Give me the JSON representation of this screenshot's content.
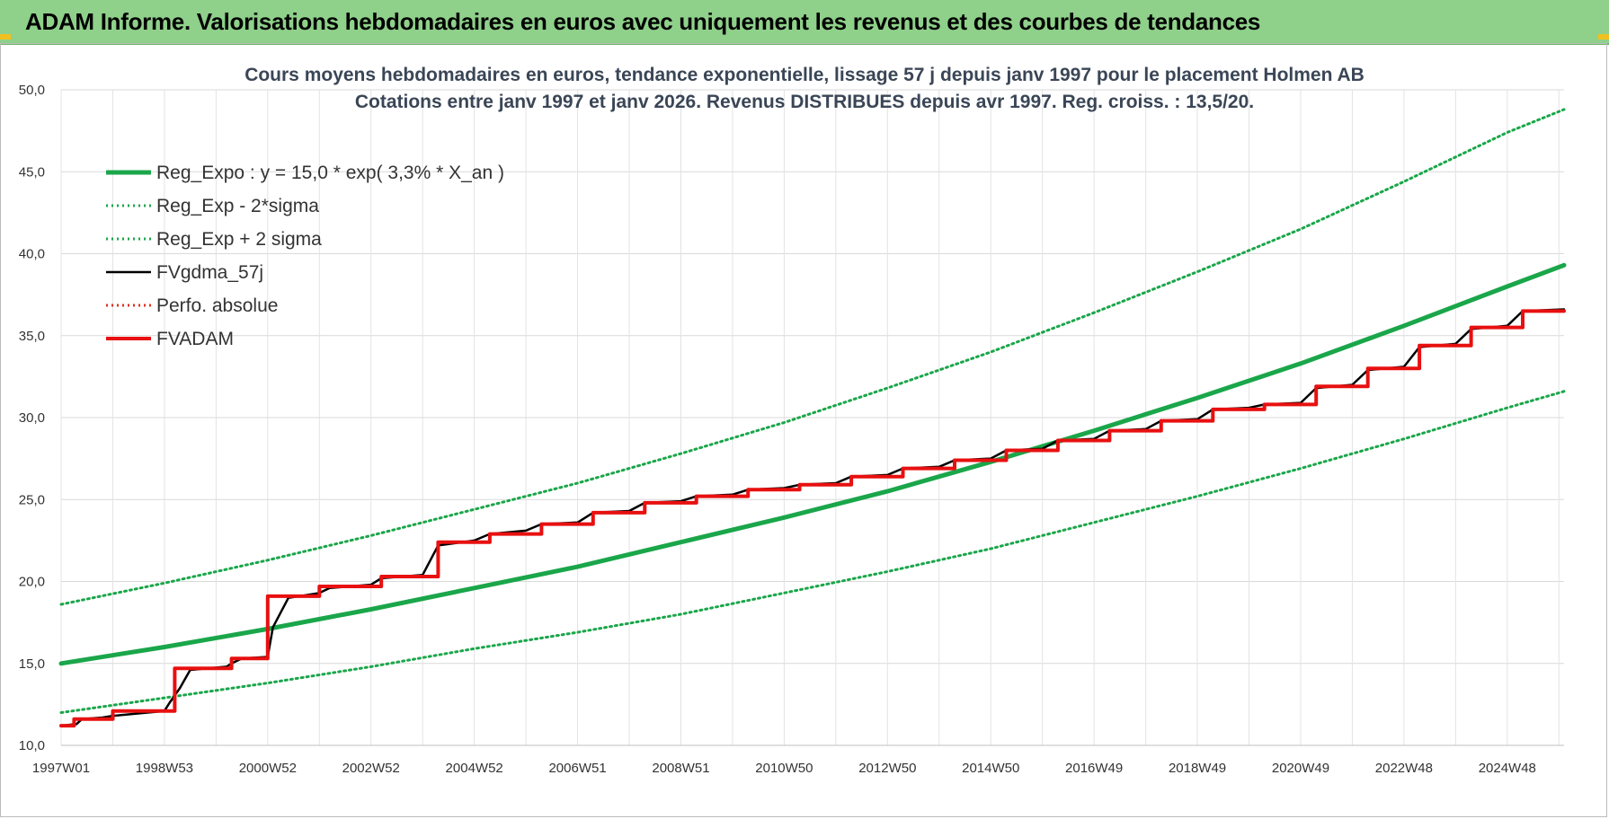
{
  "banner": {
    "title": "ADAM Informe. Valorisations hebdomadaires en euros avec uniquement les revenus et des courbes de tendances"
  },
  "colors": {
    "banner_bg": "#8fd08a",
    "trend_green": "#1aa64a",
    "fv_black": "#000000",
    "perf_red": "#e0301e",
    "fvadam_red": "#e81010"
  },
  "chart_data": {
    "type": "line",
    "title": "Cours moyens hebdomadaires en euros, tendance exponentielle, lissage 57 j depuis janv 1997  pour le placement Holmen AB",
    "subtitle": "Cotations entre janv 1997 et janv 2026. Revenus DISTRIBUES depuis avr 1997.  Reg. croiss. : 13,5/20.",
    "xlabel": "",
    "ylabel": "",
    "ylim": [
      10,
      50
    ],
    "xlim": [
      0,
      29.1
    ],
    "y_ticks": [
      "10,0",
      "15,0",
      "20,0",
      "25,0",
      "30,0",
      "35,0",
      "40,0",
      "45,0",
      "50,0"
    ],
    "x_ticks": [
      {
        "label": "1997W01",
        "x": 0
      },
      {
        "label": "1998W53",
        "x": 2
      },
      {
        "label": "2000W52",
        "x": 4
      },
      {
        "label": "2002W52",
        "x": 6
      },
      {
        "label": "2004W52",
        "x": 8
      },
      {
        "label": "2006W51",
        "x": 10
      },
      {
        "label": "2008W51",
        "x": 12
      },
      {
        "label": "2010W50",
        "x": 14
      },
      {
        "label": "2012W50",
        "x": 16
      },
      {
        "label": "2014W50",
        "x": 18
      },
      {
        "label": "2016W49",
        "x": 20
      },
      {
        "label": "2018W49",
        "x": 22
      },
      {
        "label": "2020W49",
        "x": 24
      },
      {
        "label": "2022W48",
        "x": 26
      },
      {
        "label": "2024W48",
        "x": 28
      }
    ],
    "grid": true,
    "legend_position": "top-left",
    "series": [
      {
        "name": "Reg_Expo : y = 15,0 * exp( 3,3% *  X_an )",
        "style": "solid-thick",
        "color": "#1aa64a",
        "x": [
          0,
          2,
          4,
          6,
          8,
          10,
          12,
          14,
          16,
          18,
          20,
          22,
          24,
          26,
          28,
          29.1
        ],
        "values": [
          15.0,
          16.0,
          17.1,
          18.3,
          19.6,
          20.9,
          22.4,
          23.9,
          25.5,
          27.3,
          29.2,
          31.2,
          33.3,
          35.6,
          38.0,
          39.3
        ]
      },
      {
        "name": "Reg_Exp - 2*sigma",
        "style": "dotted",
        "color": "#1aa64a",
        "x": [
          0,
          2,
          4,
          6,
          8,
          10,
          12,
          14,
          16,
          18,
          20,
          22,
          24,
          26,
          28,
          29.1
        ],
        "values": [
          12.0,
          12.9,
          13.8,
          14.8,
          15.9,
          16.9,
          18.0,
          19.3,
          20.6,
          22.0,
          23.6,
          25.2,
          26.9,
          28.7,
          30.6,
          31.6
        ]
      },
      {
        "name": "Reg_Exp + 2 sigma",
        "style": "dotted",
        "color": "#1aa64a",
        "x": [
          0,
          2,
          4,
          6,
          8,
          10,
          12,
          14,
          16,
          18,
          20,
          22,
          24,
          26,
          28,
          29.1
        ],
        "values": [
          18.6,
          19.9,
          21.3,
          22.8,
          24.4,
          26.0,
          27.8,
          29.7,
          31.8,
          34.0,
          36.4,
          38.9,
          41.5,
          44.4,
          47.4,
          48.8
        ]
      },
      {
        "name": "FVgdma_57j",
        "style": "solid",
        "color": "#000000",
        "x": [
          0,
          0.3,
          0.4,
          0.8,
          1.0,
          2.0,
          2.1,
          2.3,
          2.5,
          3.2,
          3.3,
          3.5,
          4.0,
          4.1,
          4.4,
          5.0,
          5.2,
          6.0,
          6.2,
          7.0,
          7.3,
          8.0,
          8.3,
          9.0,
          9.3,
          10.0,
          10.3,
          11.0,
          11.3,
          12.0,
          12.3,
          13.0,
          13.3,
          14.0,
          14.3,
          15.0,
          15.3,
          16.0,
          16.3,
          17.0,
          17.3,
          18.0,
          18.3,
          19.0,
          19.3,
          20.0,
          20.3,
          21.0,
          21.3,
          22.0,
          22.3,
          23.0,
          23.3,
          24.0,
          24.3,
          25.0,
          25.3,
          26.0,
          26.3,
          27.0,
          27.3,
          28.0,
          28.3,
          29.1
        ],
        "values": [
          11.2,
          11.3,
          11.6,
          11.7,
          11.8,
          12.1,
          12.6,
          13.5,
          14.6,
          14.8,
          15.0,
          15.3,
          15.4,
          17.2,
          19.0,
          19.3,
          19.6,
          19.8,
          20.2,
          20.4,
          22.2,
          22.5,
          22.9,
          23.1,
          23.5,
          23.6,
          24.2,
          24.3,
          24.8,
          24.9,
          25.2,
          25.3,
          25.6,
          25.7,
          25.9,
          26.0,
          26.4,
          26.5,
          26.9,
          27.0,
          27.4,
          27.5,
          28.0,
          28.1,
          28.6,
          28.7,
          29.2,
          29.3,
          29.8,
          29.9,
          30.5,
          30.6,
          30.8,
          30.9,
          31.8,
          32.0,
          32.9,
          33.1,
          34.3,
          34.5,
          35.4,
          35.6,
          36.5,
          36.6
        ]
      },
      {
        "name": "Perfo. absolue",
        "style": "dotted",
        "color": "#e0301e",
        "x": [],
        "values": []
      },
      {
        "name": "FVADAM",
        "style": "step-thick",
        "color": "#e81010",
        "x": [
          0,
          0.25,
          0.25,
          1.0,
          1.0,
          2.2,
          2.2,
          3.3,
          3.3,
          4.0,
          4.0,
          5.0,
          5.0,
          6.2,
          6.2,
          7.3,
          7.3,
          8.3,
          8.3,
          9.3,
          9.3,
          10.3,
          10.3,
          11.3,
          11.3,
          12.3,
          12.3,
          13.3,
          13.3,
          14.3,
          14.3,
          15.3,
          15.3,
          16.3,
          16.3,
          17.3,
          17.3,
          18.3,
          18.3,
          19.3,
          19.3,
          20.3,
          20.3,
          21.3,
          21.3,
          22.3,
          22.3,
          23.3,
          23.3,
          24.3,
          24.3,
          25.3,
          25.3,
          26.3,
          26.3,
          27.3,
          27.3,
          28.3,
          28.3,
          29.1
        ],
        "values": [
          11.2,
          11.2,
          11.6,
          11.6,
          12.1,
          12.1,
          14.7,
          14.7,
          15.3,
          15.3,
          19.1,
          19.1,
          19.7,
          19.7,
          20.3,
          20.3,
          22.4,
          22.4,
          22.9,
          22.9,
          23.5,
          23.5,
          24.2,
          24.2,
          24.8,
          24.8,
          25.2,
          25.2,
          25.6,
          25.6,
          25.9,
          25.9,
          26.4,
          26.4,
          26.9,
          26.9,
          27.4,
          27.4,
          28.0,
          28.0,
          28.6,
          28.6,
          29.2,
          29.2,
          29.8,
          29.8,
          30.5,
          30.5,
          30.8,
          30.8,
          31.9,
          31.9,
          33.0,
          33.0,
          34.4,
          34.4,
          35.5,
          35.5,
          36.5,
          36.5
        ]
      }
    ]
  }
}
